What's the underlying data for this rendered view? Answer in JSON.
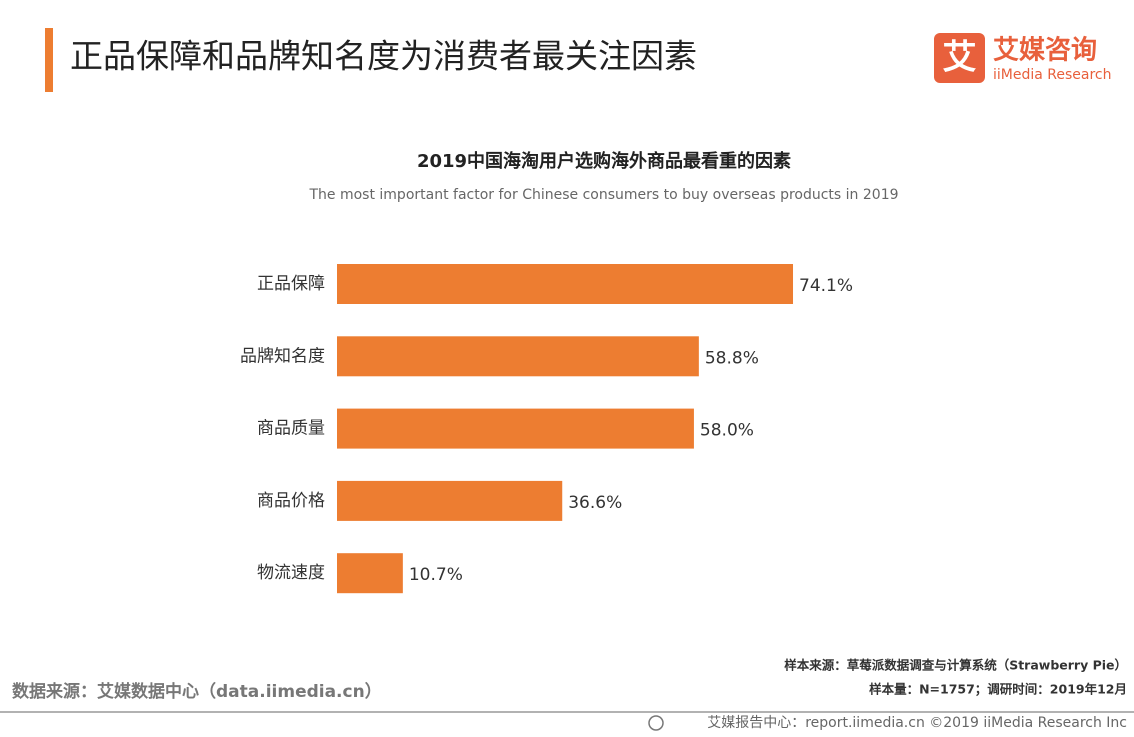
{
  "header": {
    "title": "正品保障和品牌知名度为消费者最关注因素",
    "logo_text": "艾媒咨询",
    "logo_sub": "iiMedia Research",
    "logo_icon": "艾"
  },
  "chart_data": {
    "type": "bar",
    "orientation": "horizontal",
    "title": "2019中国海淘用户选购海外商品最看重的因素",
    "subtitle": "The most important factor for Chinese consumers to buy overseas products in 2019",
    "categories": [
      "正品保障",
      "品牌知名度",
      "商品质量",
      "商品价格",
      "物流速度"
    ],
    "values": [
      74.1,
      58.8,
      58.0,
      36.6,
      10.7
    ],
    "value_labels": [
      "74.1%",
      "58.8%",
      "58.0%",
      "36.6%",
      "10.7%"
    ],
    "color": "#ed7d31"
  },
  "footer": {
    "sample_source": "样本来源：草莓派数据调查与计算系统（Strawberry Pie）",
    "sample_info": "样本量：N=1757；调研时间：2019年12月",
    "data_source": "数据来源：艾媒数据中心（data.iimedia.cn）",
    "copyright": "艾媒报告中心：report.iimedia.cn  ©2019  iiMedia Research  Inc"
  }
}
